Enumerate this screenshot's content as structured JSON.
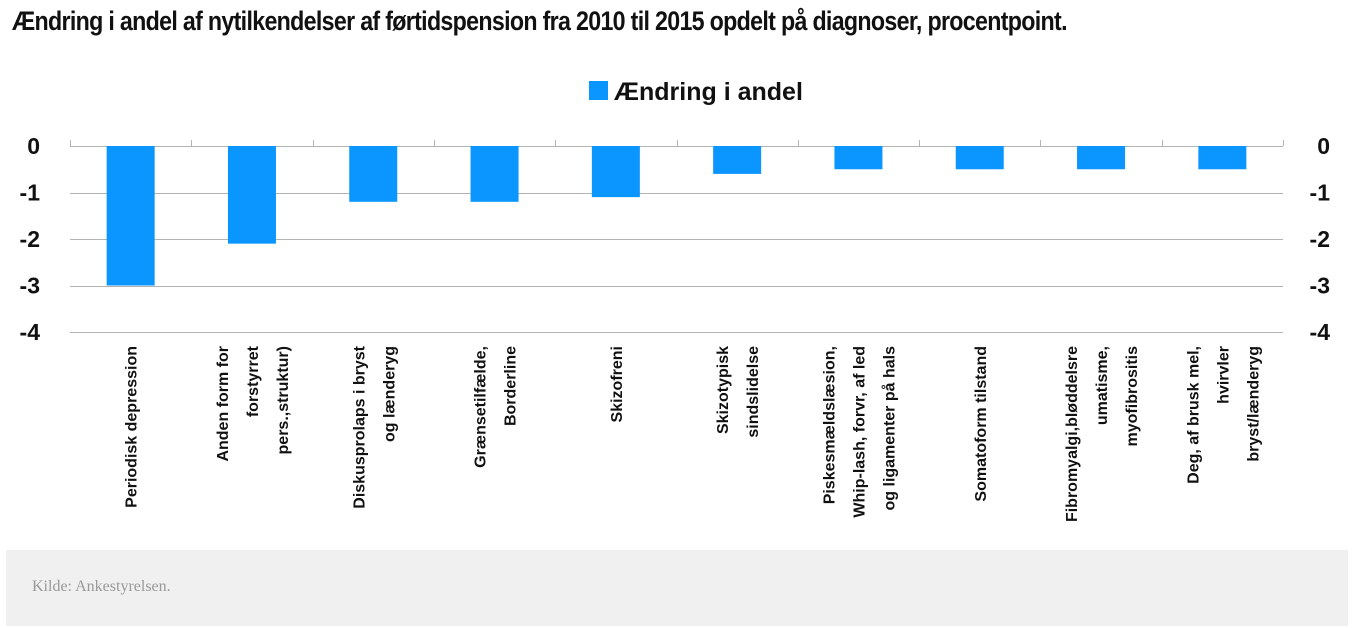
{
  "title": "Ændring i andel af nytilkendelser af førtidspension fra 2010 til 2015 opdelt på diagnoser, procentpoint.",
  "source": "Kilde: Ankestyrelsen.",
  "colors": {
    "bar": "#0a95ff",
    "grid": "#b3b3b3",
    "text": "#111111"
  },
  "chart_data": {
    "type": "bar",
    "legend": {
      "position": "top-center",
      "entries": [
        "Ændring i andel"
      ]
    },
    "categories": [
      [
        "Periodisk depression"
      ],
      [
        "Anden form for",
        "forstyrret",
        "pers.,struktur)"
      ],
      [
        "Diskusprolaps i bryst",
        "og lænderyg"
      ],
      [
        "Grænsetilfælde,",
        "Borderline"
      ],
      [
        "Skizofreni"
      ],
      [
        "Skizotypisk",
        "sindslidelse"
      ],
      [
        "Piskesmældslæsion,",
        "Whip-lash, forvr, af led",
        "og ligamenter på hals"
      ],
      [
        "Somatoform tilstand"
      ],
      [
        "Fibromyalgi,bløddelsre",
        "umatisme,",
        "myofibrositis"
      ],
      [
        "Deg, af brusk mel,",
        "hvirvler",
        "bryst/lænderyg"
      ]
    ],
    "series": [
      {
        "name": "Ændring i andel",
        "values": [
          -3.0,
          -2.1,
          -1.2,
          -1.2,
          -1.1,
          -0.6,
          -0.5,
          -0.5,
          -0.5,
          -0.5
        ]
      }
    ],
    "ylim": [
      -4,
      0
    ],
    "yticks": [
      "0",
      "-1",
      "-2",
      "-3",
      "-4"
    ],
    "secondary_yticks": [
      "0",
      "-1",
      "-2",
      "-3",
      "-4"
    ],
    "grid": true,
    "xlabel": "",
    "ylabel": ""
  }
}
